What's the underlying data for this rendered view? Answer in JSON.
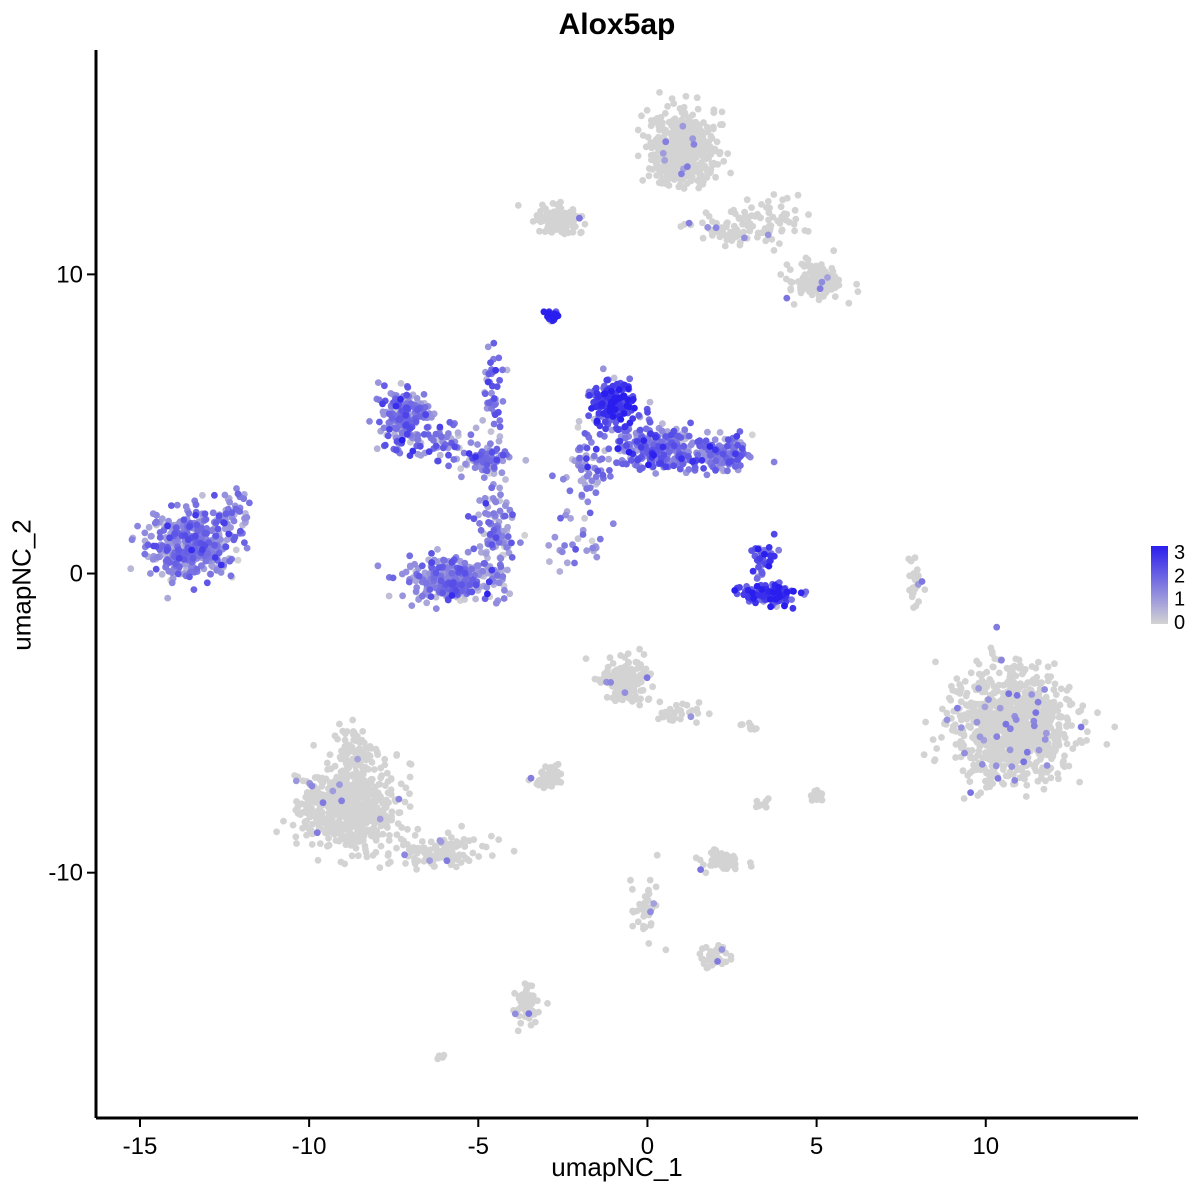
{
  "chart_data": {
    "type": "scatter",
    "title": "Alox5ap",
    "xlabel": "umapNC_1",
    "ylabel": "umapNC_2",
    "xlim": [
      -16.3,
      14.5
    ],
    "ylim": [
      -18.2,
      17.5
    ],
    "xticks": [
      -15,
      -10,
      -5,
      0,
      5,
      10
    ],
    "yticks": [
      -10,
      0,
      10
    ],
    "xtick_labels": [
      "-15",
      "-10",
      "-5",
      "0",
      "5",
      "10"
    ],
    "ytick_labels": [
      "-10",
      "0",
      "10"
    ],
    "grid": false,
    "legend": {
      "position": "right",
      "ticks": [
        "3",
        "2",
        "1",
        "0"
      ],
      "range": [
        0,
        3
      ],
      "low_color": "#d3d3d3",
      "high_color": "#2a1eee"
    },
    "colors": {
      "low": "#d3d3d3",
      "high": "#2a1eee"
    },
    "clusters": [
      {
        "id": "c1",
        "cx": -13.5,
        "cy": 1.0,
        "sx": 1.0,
        "sy": 0.9,
        "n": 420,
        "expr": 1.3
      },
      {
        "id": "c2",
        "cx": -12.3,
        "cy": 2.0,
        "sx": 0.4,
        "sy": 0.6,
        "n": 40,
        "expr": 1.2
      },
      {
        "id": "c3",
        "cx": -7.2,
        "cy": 5.2,
        "sx": 0.6,
        "sy": 0.8,
        "n": 180,
        "expr": 1.5
      },
      {
        "id": "c4",
        "cx": -4.8,
        "cy": 3.8,
        "sx": 0.6,
        "sy": 0.4,
        "n": 80,
        "expr": 1.3
      },
      {
        "id": "c5",
        "cx": -6.0,
        "cy": 4.4,
        "sx": 1.0,
        "sy": 0.5,
        "n": 60,
        "expr": 1.4
      },
      {
        "id": "c6",
        "cx": -5.8,
        "cy": -0.2,
        "sx": 1.2,
        "sy": 0.6,
        "n": 320,
        "expr": 1.2
      },
      {
        "id": "c7",
        "cx": -4.5,
        "cy": 1.4,
        "sx": 0.5,
        "sy": 1.0,
        "n": 100,
        "expr": 1.1
      },
      {
        "id": "c8",
        "cx": -4.6,
        "cy": 6.2,
        "sx": 0.3,
        "sy": 1.0,
        "n": 40,
        "expr": 1.5
      },
      {
        "id": "c9",
        "cx": -2.8,
        "cy": 8.6,
        "sx": 0.2,
        "sy": 0.15,
        "n": 20,
        "expr": 2.9
      },
      {
        "id": "c10",
        "cx": -1.0,
        "cy": 5.7,
        "sx": 0.5,
        "sy": 0.6,
        "n": 200,
        "expr": 2.3
      },
      {
        "id": "c11",
        "cx": 0.3,
        "cy": 4.2,
        "sx": 1.2,
        "sy": 0.6,
        "n": 280,
        "expr": 1.6
      },
      {
        "id": "c12",
        "cx": 2.2,
        "cy": 4.0,
        "sx": 0.6,
        "sy": 0.5,
        "n": 140,
        "expr": 1.4
      },
      {
        "id": "c13",
        "cx": -1.8,
        "cy": 3.5,
        "sx": 0.6,
        "sy": 1.0,
        "n": 60,
        "expr": 1.3
      },
      {
        "id": "c14",
        "cx": 3.6,
        "cy": -0.7,
        "sx": 0.7,
        "sy": 0.3,
        "n": 130,
        "expr": 2.2
      },
      {
        "id": "c15",
        "cx": 3.4,
        "cy": 0.6,
        "sx": 0.3,
        "sy": 0.5,
        "n": 40,
        "expr": 2.1
      },
      {
        "id": "c16",
        "cx": -2.2,
        "cy": 1.0,
        "sx": 0.8,
        "sy": 0.8,
        "n": 25,
        "expr": 0.8
      },
      {
        "id": "c17",
        "cx": 1.0,
        "cy": 14.2,
        "sx": 0.8,
        "sy": 1.0,
        "n": 500,
        "expr": 0.0
      },
      {
        "id": "c18",
        "cx": -2.6,
        "cy": 11.8,
        "sx": 0.6,
        "sy": 0.4,
        "n": 120,
        "expr": 0.0
      },
      {
        "id": "c19",
        "cx": 3.0,
        "cy": 11.6,
        "sx": 1.2,
        "sy": 0.6,
        "n": 120,
        "expr": 0.0
      },
      {
        "id": "c20",
        "cx": 5.0,
        "cy": 9.8,
        "sx": 0.7,
        "sy": 0.5,
        "n": 120,
        "expr": 0.0
      },
      {
        "id": "c21",
        "cx": 10.8,
        "cy": -5.2,
        "sx": 1.4,
        "sy": 1.5,
        "n": 950,
        "expr": 0.0
      },
      {
        "id": "c22",
        "cx": -8.8,
        "cy": -7.8,
        "sx": 1.2,
        "sy": 1.2,
        "n": 600,
        "expr": 0.0
      },
      {
        "id": "c23",
        "cx": -6.2,
        "cy": -9.3,
        "sx": 1.2,
        "sy": 0.5,
        "n": 110,
        "expr": 0.0
      },
      {
        "id": "c24",
        "cx": -8.6,
        "cy": -5.8,
        "sx": 0.4,
        "sy": 0.6,
        "n": 60,
        "expr": 0.0
      },
      {
        "id": "c25",
        "cx": -0.6,
        "cy": -3.6,
        "sx": 0.6,
        "sy": 0.6,
        "n": 160,
        "expr": 0.0
      },
      {
        "id": "c26",
        "cx": 1.0,
        "cy": -4.6,
        "sx": 0.6,
        "sy": 0.4,
        "n": 30,
        "expr": 0.0
      },
      {
        "id": "c27",
        "cx": -3.0,
        "cy": -6.9,
        "sx": 0.3,
        "sy": 0.3,
        "n": 50,
        "expr": 0.0
      },
      {
        "id": "c28",
        "cx": 2.2,
        "cy": -9.6,
        "sx": 0.5,
        "sy": 0.25,
        "n": 60,
        "expr": 0.0
      },
      {
        "id": "c29",
        "cx": 0.0,
        "cy": -11.2,
        "sx": 0.4,
        "sy": 0.9,
        "n": 40,
        "expr": 0.0
      },
      {
        "id": "c30",
        "cx": 2.0,
        "cy": -12.8,
        "sx": 0.5,
        "sy": 0.3,
        "n": 40,
        "expr": 0.0
      },
      {
        "id": "c31",
        "cx": -3.6,
        "cy": -14.4,
        "sx": 0.3,
        "sy": 0.6,
        "n": 60,
        "expr": 0.0
      },
      {
        "id": "c32",
        "cx": 7.9,
        "cy": -0.3,
        "sx": 0.15,
        "sy": 0.7,
        "n": 25,
        "expr": 0.0
      },
      {
        "id": "c33",
        "cx": 5.0,
        "cy": -7.4,
        "sx": 0.2,
        "sy": 0.2,
        "n": 15,
        "expr": 0.0
      },
      {
        "id": "c34",
        "cx": 3.4,
        "cy": -7.7,
        "sx": 0.2,
        "sy": 0.2,
        "n": 8,
        "expr": 0.0
      },
      {
        "id": "c35",
        "cx": 3.0,
        "cy": -5.1,
        "sx": 0.2,
        "sy": 0.1,
        "n": 8,
        "expr": 0.0
      },
      {
        "id": "c36",
        "cx": -6.1,
        "cy": -16.2,
        "sx": 0.15,
        "sy": 0.1,
        "n": 6,
        "expr": 0.0
      }
    ]
  }
}
